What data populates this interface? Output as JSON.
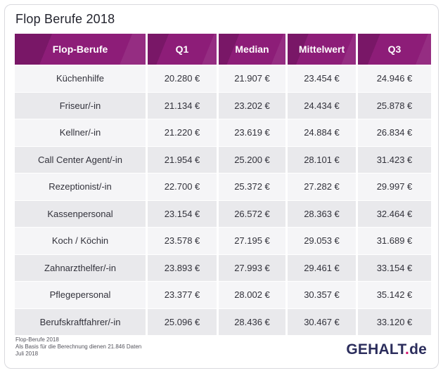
{
  "title": "Flop Berufe 2018",
  "table": {
    "columns": [
      "Flop-Berufe",
      "Q1",
      "Median",
      "Mittelwert",
      "Q3"
    ],
    "rows": [
      [
        "Küchenhilfe",
        "20.280 €",
        "21.907 €",
        "23.454 €",
        "24.946 €"
      ],
      [
        "Friseur/-in",
        "21.134 €",
        "23.202 €",
        "24.434 €",
        "25.878 €"
      ],
      [
        "Kellner/-in",
        "21.220 €",
        "23.619 €",
        "24.884 €",
        "26.834 €"
      ],
      [
        "Call Center Agent/-in",
        "21.954 €",
        "25.200 €",
        "28.101 €",
        "31.423 €"
      ],
      [
        "Rezeptionist/-in",
        "22.700 €",
        "25.372 €",
        "27.282 €",
        "29.997 €"
      ],
      [
        "Kassenpersonal",
        "23.154 €",
        "26.572 €",
        "28.363 €",
        "32.464 €"
      ],
      [
        "Koch / Köchin",
        "23.578 €",
        "27.195 €",
        "29.053 €",
        "31.689 €"
      ],
      [
        "Zahnarzthelfer/-in",
        "23.893 €",
        "27.993 €",
        "29.461 €",
        "33.154 €"
      ],
      [
        "Pflegepersonal",
        "23.377 €",
        "28.002 €",
        "30.357 €",
        "35.142 €"
      ],
      [
        "Berufskraftfahrer/-in",
        "25.096 €",
        "28.436 €",
        "30.467 €",
        "33.120 €"
      ]
    ]
  },
  "footer": {
    "lines": [
      "Flop-Berufe 2018",
      "Als Basis für die Berechnung dienen 21.846 Daten",
      "Juli 2018"
    ]
  },
  "logo": {
    "part1": "GEHALT",
    "dot": ".",
    "part2": "de"
  },
  "colors": {
    "header_purple": "#8d1d78",
    "row_light": "#f5f5f7",
    "row_dark": "#e9e9ec",
    "logo_navy": "#2b2d5c",
    "logo_dot_magenta": "#d4166f",
    "card_border": "#d9d9de"
  },
  "chart_data": {
    "type": "table",
    "title": "Flop Berufe 2018",
    "columns": [
      "Flop-Berufe",
      "Q1",
      "Median",
      "Mittelwert",
      "Q3"
    ],
    "rows": [
      {
        "beruf": "Küchenhilfe",
        "q1_eur": 20280,
        "median_eur": 21907,
        "mittelwert_eur": 23454,
        "q3_eur": 24946
      },
      {
        "beruf": "Friseur/-in",
        "q1_eur": 21134,
        "median_eur": 23202,
        "mittelwert_eur": 24434,
        "q3_eur": 25878
      },
      {
        "beruf": "Kellner/-in",
        "q1_eur": 21220,
        "median_eur": 23619,
        "mittelwert_eur": 24884,
        "q3_eur": 26834
      },
      {
        "beruf": "Call Center Agent/-in",
        "q1_eur": 21954,
        "median_eur": 25200,
        "mittelwert_eur": 28101,
        "q3_eur": 31423
      },
      {
        "beruf": "Rezeptionist/-in",
        "q1_eur": 22700,
        "median_eur": 25372,
        "mittelwert_eur": 27282,
        "q3_eur": 29997
      },
      {
        "beruf": "Kassenpersonal",
        "q1_eur": 23154,
        "median_eur": 26572,
        "mittelwert_eur": 28363,
        "q3_eur": 32464
      },
      {
        "beruf": "Koch / Köchin",
        "q1_eur": 23578,
        "median_eur": 27195,
        "mittelwert_eur": 29053,
        "q3_eur": 31689
      },
      {
        "beruf": "Zahnarzthelfer/-in",
        "q1_eur": 23893,
        "median_eur": 27993,
        "mittelwert_eur": 29461,
        "q3_eur": 33154
      },
      {
        "beruf": "Pflegepersonal",
        "q1_eur": 23377,
        "median_eur": 28002,
        "mittelwert_eur": 30357,
        "q3_eur": 35142
      },
      {
        "beruf": "Berufskraftfahrer/-in",
        "q1_eur": 25096,
        "median_eur": 28436,
        "mittelwert_eur": 30467,
        "q3_eur": 33120
      }
    ],
    "note": "Als Basis für die Berechnung dienen 21.846 Daten",
    "date": "Juli 2018",
    "source": "GEHALT.de",
    "currency": "EUR"
  }
}
